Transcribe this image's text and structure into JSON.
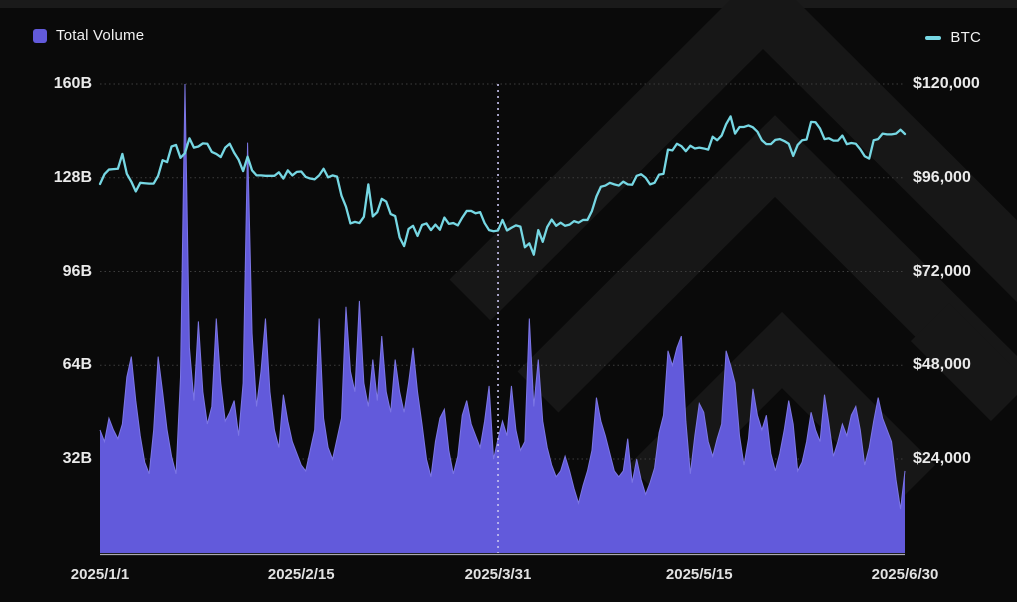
{
  "legend": {
    "volume_label": "Total Volume",
    "btc_label": "BTC"
  },
  "colors": {
    "background": "#0A0A0A",
    "top_edge": "#1A1A1A",
    "watermark": "#171717",
    "grid_line": "#3D3D3D",
    "axis_text": "#EAEAEA",
    "volume_fill": "#625ADB",
    "volume_edge": "#7C76E5",
    "btc_line": "#76D7E3",
    "marker_line": "#C8C4F0",
    "baseline": "#C6C6CF"
  },
  "chart_data": {
    "type": "area",
    "title": "",
    "start_date": "2025/1/1",
    "end_date": "2025/6/30",
    "grid": true,
    "legend_position": "top",
    "left_axis": {
      "title": "Total Volume",
      "unit": "B",
      "labels": [
        "160B",
        "128B",
        "96B",
        "64B",
        "32B"
      ],
      "values": [
        160,
        128,
        96,
        64,
        32
      ]
    },
    "right_axis": {
      "title": "BTC price",
      "unit": "USD",
      "labels": [
        "$120,000",
        "$96,000",
        "$72,000",
        "$48,000",
        "$24,000"
      ],
      "values": [
        120000,
        96000,
        72000,
        48000,
        24000
      ]
    },
    "x_axis": {
      "tick_labels": [
        "2025/1/1",
        "2025/2/15",
        "2025/3/31",
        "2025/5/15",
        "2025/6/30"
      ],
      "tick_day_indices": [
        0,
        45,
        89,
        134,
        180
      ]
    },
    "marker": {
      "date": "2025/3/31",
      "day_index": 89,
      "style": "dotted-vertical"
    },
    "series": [
      {
        "name": "Total Volume",
        "type": "area",
        "unit": "billion USD",
        "values": [
          42,
          38,
          46,
          42,
          39,
          44,
          60,
          67,
          52,
          40,
          31,
          27,
          42,
          67,
          55,
          42,
          33,
          27,
          60,
          160,
          70,
          52,
          79,
          55,
          44,
          50,
          80,
          58,
          45,
          48,
          52,
          40,
          58,
          140,
          75,
          50,
          62,
          80,
          55,
          42,
          36,
          54,
          45,
          38,
          34,
          30,
          28,
          35,
          42,
          80,
          46,
          36,
          32,
          39,
          46,
          84,
          62,
          55,
          86,
          58,
          50,
          66,
          52,
          74,
          55,
          48,
          66,
          55,
          48,
          58,
          70,
          55,
          44,
          32,
          26,
          38,
          46,
          49,
          35,
          27,
          33,
          47,
          52,
          44,
          40,
          36,
          45,
          57,
          32,
          39,
          45,
          40,
          57,
          42,
          35,
          38,
          80,
          50,
          66,
          45,
          36,
          30,
          26,
          28,
          33,
          28,
          22,
          17,
          23,
          28,
          35,
          53,
          45,
          40,
          34,
          28,
          26,
          28,
          39,
          24,
          32,
          25,
          20,
          24,
          29,
          41,
          47,
          69,
          64,
          70,
          74,
          45,
          27,
          40,
          51,
          48,
          38,
          33,
          39,
          44,
          69,
          64,
          58,
          40,
          30,
          39,
          56,
          47,
          42,
          47,
          34,
          28,
          34,
          42,
          52,
          44,
          28,
          31,
          38,
          48,
          42,
          38,
          54,
          44,
          33,
          38,
          44,
          40,
          47,
          50,
          42,
          30,
          36,
          45,
          53,
          46,
          42,
          38,
          25,
          15,
          28
        ]
      },
      {
        "name": "BTC",
        "type": "line",
        "unit": "USD",
        "values": [
          94400,
          96900,
          98100,
          98200,
          98300,
          102100,
          97000,
          95000,
          92500,
          94700,
          94600,
          94500,
          94500,
          96500,
          100500,
          100000,
          104000,
          104400,
          101100,
          102300,
          106100,
          103700,
          104000,
          104800,
          104700,
          102600,
          102100,
          101300,
          103700,
          104700,
          102400,
          100600,
          97700,
          101400,
          97900,
          96600,
          96600,
          96500,
          96500,
          96500,
          97400,
          95800,
          97900,
          96600,
          97500,
          97600,
          96200,
          95800,
          95600,
          96600,
          98300,
          96100,
          96600,
          96300,
          91400,
          88600,
          84300,
          84700,
          84400,
          86000,
          94300,
          86100,
          87200,
          90600,
          89900,
          86700,
          86200,
          80700,
          78500,
          82900,
          83700,
          81100,
          83900,
          84300,
          82600,
          84000,
          82700,
          85800,
          84200,
          84400,
          83800,
          85800,
          87500,
          87500,
          86900,
          87200,
          84400,
          82600,
          82300,
          82500,
          85200,
          82500,
          83200,
          83800,
          83500,
          78200,
          79200,
          76300,
          82600,
          79600,
          83400,
          85300,
          83700,
          84500,
          83700,
          84000,
          84900,
          84500,
          85200,
          85200,
          87500,
          91200,
          93700,
          94000,
          94700,
          94300,
          94000,
          95000,
          94300,
          94200,
          96500,
          96900,
          96000,
          94300,
          94700,
          96800,
          97000,
          103200,
          103000,
          104700,
          104100,
          102800,
          104200,
          103500,
          103700,
          103500,
          103200,
          106500,
          105600,
          106800,
          109700,
          111700,
          107300,
          109000,
          109000,
          109400,
          108900,
          107800,
          105600,
          104600,
          104600,
          105700,
          105900,
          105400,
          104700,
          101600,
          104400,
          105600,
          105800,
          110300,
          110200,
          108600,
          105900,
          106100,
          105500,
          105500,
          106800,
          104600,
          104900,
          104700,
          103300,
          101500,
          100900,
          105600,
          105900,
          107300,
          107100,
          107100,
          107300,
          108300,
          107200
        ]
      }
    ]
  }
}
